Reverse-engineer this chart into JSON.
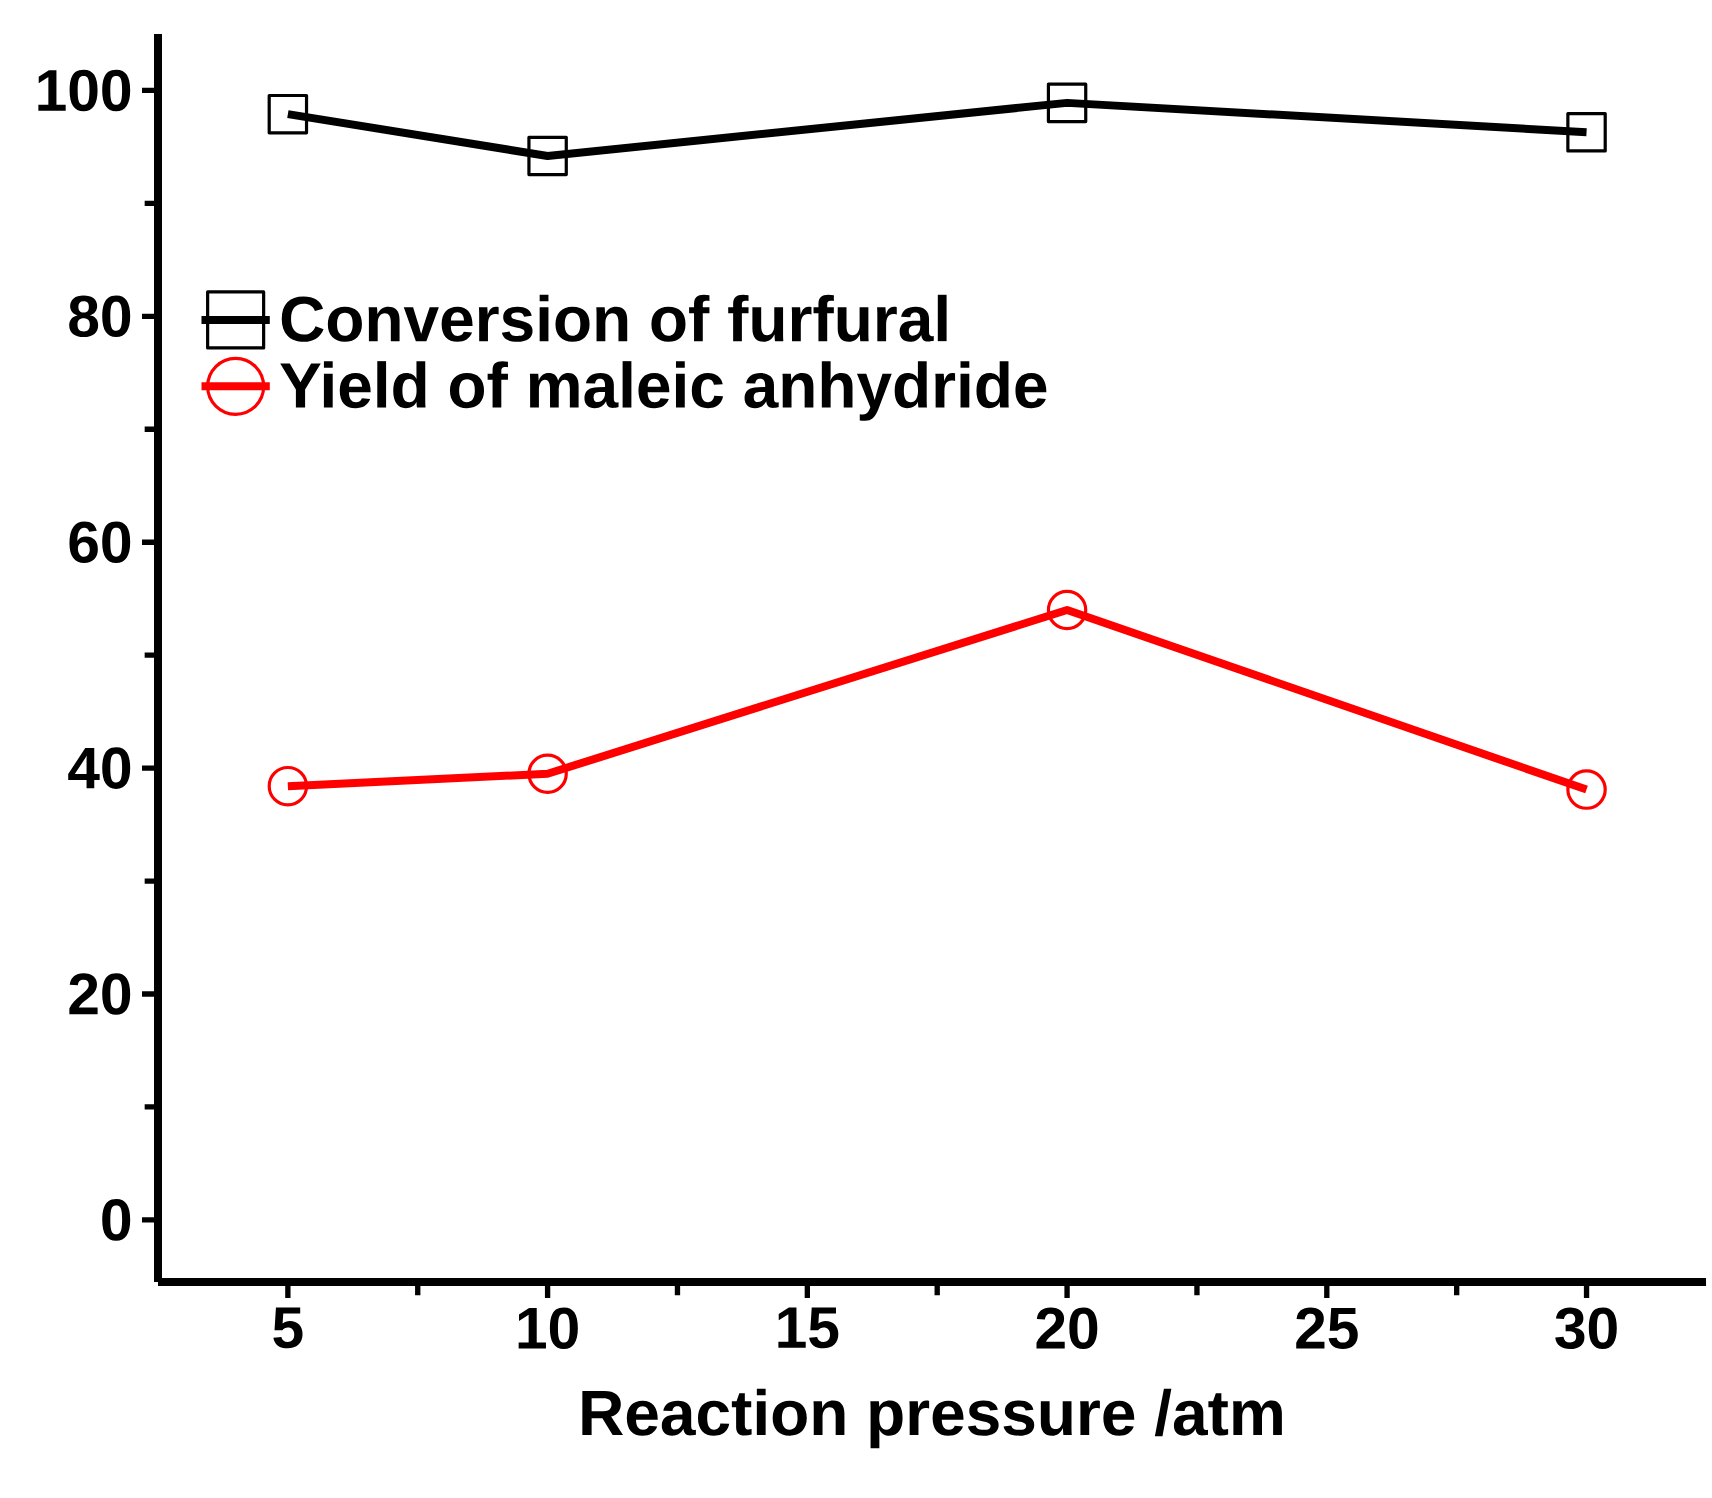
{
  "chart_data": {
    "type": "line",
    "xlabel": "Reaction pressure /atm",
    "x": [
      5,
      10,
      20,
      30
    ],
    "series": [
      {
        "name": "Conversion of furfural",
        "color": "#000000",
        "marker": "square",
        "values": [
          97.9,
          94.2,
          98.9,
          96.3
        ]
      },
      {
        "name": "Yield of maleic anhydride",
        "color": "#ff0000",
        "marker": "circle",
        "values": [
          38.4,
          39.5,
          54.0,
          38.1
        ]
      }
    ],
    "xlim": [
      2.5,
      32.3
    ],
    "ylim": [
      -5.5,
      105
    ],
    "xticks": [
      5,
      10,
      15,
      20,
      25,
      30
    ],
    "yticks": [
      0,
      20,
      40,
      60,
      80,
      100
    ],
    "legend": "top left",
    "grid": false,
    "line_style": "solid"
  }
}
